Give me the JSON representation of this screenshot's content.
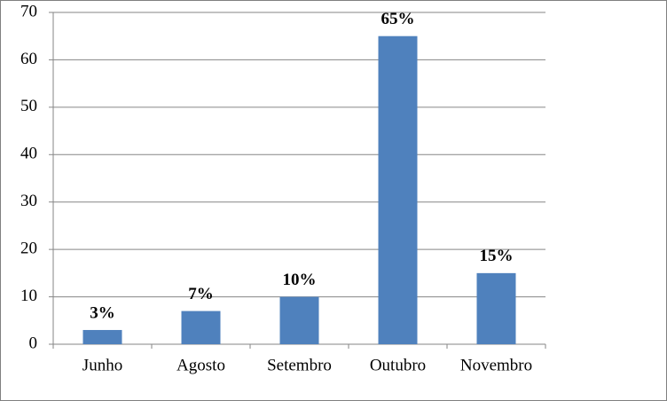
{
  "chart_data": {
    "type": "bar",
    "categories": [
      "Junho",
      "Agosto",
      "Setembro",
      "Outubro",
      "Novembro"
    ],
    "values": [
      3,
      7,
      10,
      65,
      15
    ],
    "value_labels": [
      "3%",
      "7%",
      "10%",
      "65%",
      "15%"
    ],
    "color": "#4f81bd",
    "ylim": [
      0,
      70
    ],
    "yticks": [
      0,
      10,
      20,
      30,
      40,
      50,
      60,
      70
    ],
    "grid": true
  }
}
